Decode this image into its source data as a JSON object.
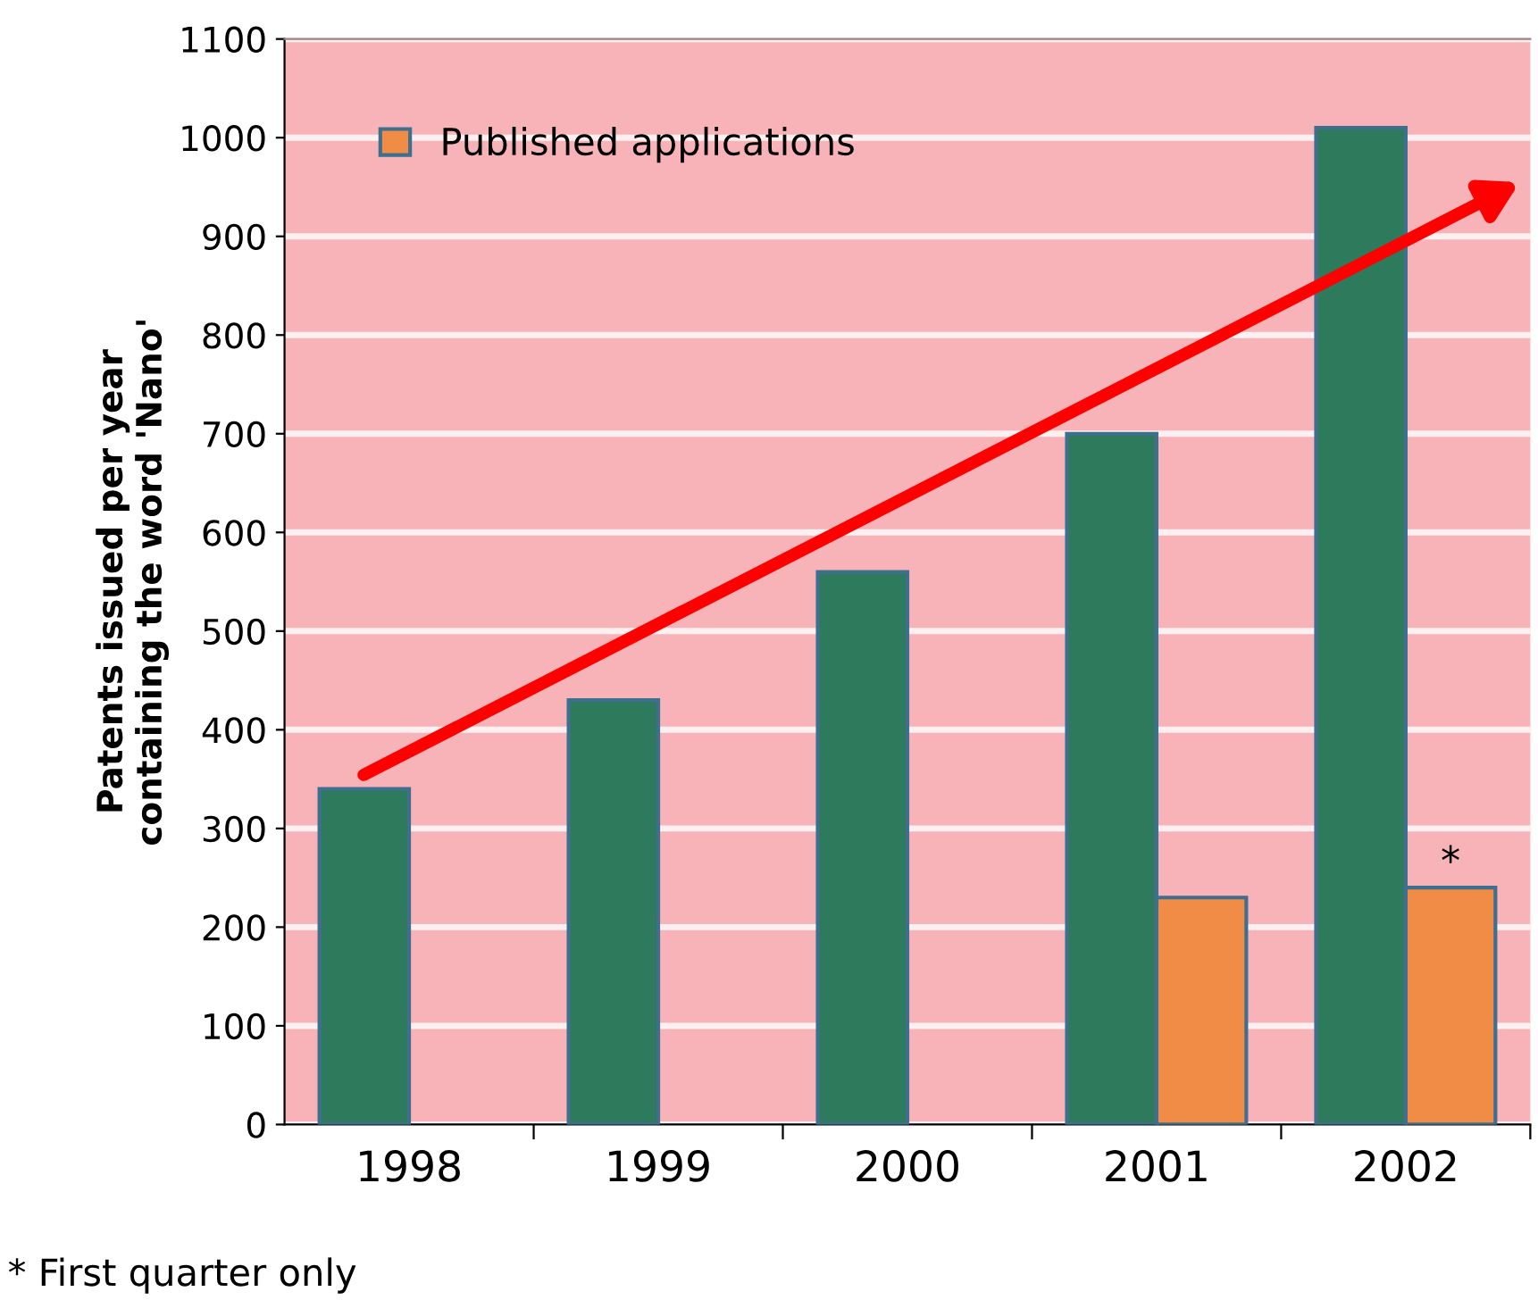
{
  "chart_data": {
    "type": "bar",
    "ylabel": "Patents issued per year\ncontaining the word 'Nano'",
    "categories": [
      "1998",
      "1999",
      "2000",
      "2001",
      "2002"
    ],
    "series": [
      {
        "color": "#2e7a5c",
        "values": [
          340,
          430,
          560,
          700,
          1010
        ]
      },
      {
        "name": "Published applications",
        "color": "#f08c45",
        "values": [
          null,
          null,
          null,
          230,
          240
        ]
      }
    ],
    "ylim": [
      0,
      1100
    ],
    "yticks": [
      0,
      100,
      200,
      300,
      400,
      500,
      600,
      700,
      800,
      900,
      1000,
      1100
    ],
    "grid": "y",
    "legend": "top left",
    "annotations": [
      {
        "text": "*",
        "x": "2002",
        "y": 240
      },
      "* First quarter only"
    ]
  }
}
